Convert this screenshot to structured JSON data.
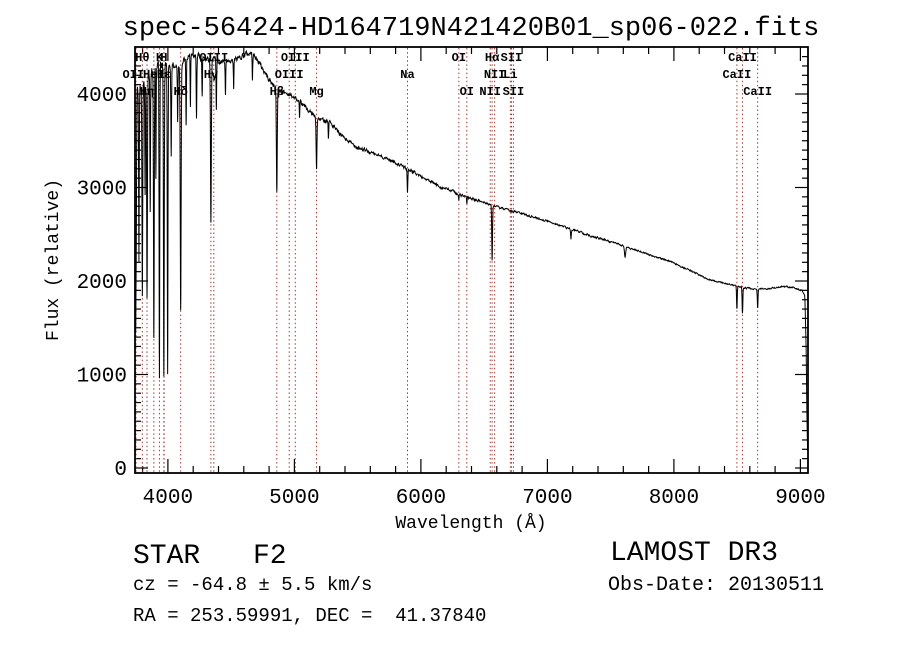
{
  "title": "spec-56424-HD164719N421420B01_sp06-022.fits",
  "axes": {
    "xlabel": "Wavelength (Å)",
    "ylabel": "Flux (relative)",
    "x_tick_labels": [
      "4000",
      "5000",
      "6000",
      "7000",
      "8000",
      "9000"
    ],
    "y_tick_labels": [
      "0",
      "1000",
      "2000",
      "3000",
      "4000"
    ]
  },
  "footer": {
    "class_label": "STAR",
    "subclass_label": "F2",
    "cz_line": "cz = -64.8 ± 5.5 km/s",
    "radec_line": "RA = 253.59991, DEC =  41.37840",
    "release": "LAMOST DR3",
    "obs_date": "Obs-Date: 20130511"
  },
  "colors": {
    "background": "#ffffff",
    "spectrum": "#000000",
    "frame": "#000000",
    "line_marker": "#a33a33"
  },
  "chart_data": {
    "type": "line",
    "title": "spec-56424-HD164719N421420B01_sp06-022.fits",
    "xlabel": "Wavelength (Å)",
    "ylabel": "Flux (relative)",
    "xlim": [
      3740,
      9060
    ],
    "ylim": [
      0,
      4500
    ],
    "x_ticks": [
      4000,
      5000,
      6000,
      7000,
      8000,
      9000
    ],
    "y_ticks": [
      0,
      1000,
      2000,
      3000,
      4000
    ],
    "x_minor_step": 200,
    "y_minor_step": 100,
    "grid": false,
    "noise_seed": 42,
    "continuum_points": [
      [
        3741,
        3300
      ],
      [
        3748,
        4000
      ],
      [
        3780,
        4100
      ],
      [
        3850,
        4200
      ],
      [
        3920,
        4300
      ],
      [
        4000,
        4300
      ],
      [
        4080,
        4300
      ],
      [
        4150,
        4380
      ],
      [
        4250,
        4400
      ],
      [
        4350,
        4380
      ],
      [
        4420,
        4330
      ],
      [
        4500,
        4340
      ],
      [
        4600,
        4420
      ],
      [
        4660,
        4440
      ],
      [
        4720,
        4340
      ],
      [
        4800,
        4150
      ],
      [
        4870,
        4050
      ],
      [
        4950,
        4000
      ],
      [
        5000,
        3960
      ],
      [
        5080,
        3870
      ],
      [
        5180,
        3730
      ],
      [
        5270,
        3720
      ],
      [
        5350,
        3580
      ],
      [
        5450,
        3470
      ],
      [
        5550,
        3400
      ],
      [
        5650,
        3350
      ],
      [
        5750,
        3300
      ],
      [
        5850,
        3230
      ],
      [
        5950,
        3160
      ],
      [
        6050,
        3080
      ],
      [
        6150,
        3010
      ],
      [
        6250,
        2960
      ],
      [
        6350,
        2900
      ],
      [
        6450,
        2860
      ],
      [
        6550,
        2820
      ],
      [
        6650,
        2770
      ],
      [
        6750,
        2740
      ],
      [
        6850,
        2700
      ],
      [
        6950,
        2660
      ],
      [
        7050,
        2620
      ],
      [
        7150,
        2570
      ],
      [
        7250,
        2530
      ],
      [
        7350,
        2480
      ],
      [
        7450,
        2440
      ],
      [
        7550,
        2400
      ],
      [
        7650,
        2350
      ],
      [
        7750,
        2310
      ],
      [
        7850,
        2260
      ],
      [
        7950,
        2220
      ],
      [
        8050,
        2160
      ],
      [
        8150,
        2100
      ],
      [
        8250,
        2030
      ],
      [
        8350,
        1990
      ],
      [
        8450,
        1960
      ],
      [
        8550,
        1930
      ],
      [
        8650,
        1910
      ],
      [
        8750,
        1920
      ],
      [
        8850,
        1940
      ],
      [
        8950,
        1930
      ],
      [
        9010,
        1900
      ],
      [
        9035,
        1850
      ],
      [
        9045,
        1300
      ],
      [
        9052,
        500
      ],
      [
        9058,
        120
      ]
    ],
    "absorption_lines": [
      [
        3745,
        1500,
        2.2
      ],
      [
        3750,
        2450,
        2.2
      ],
      [
        3771,
        2250,
        2.4
      ],
      [
        3798,
        1900,
        3.0
      ],
      [
        3820,
        2950,
        2.2
      ],
      [
        3835,
        1850,
        3.0
      ],
      [
        3860,
        2750,
        2.2
      ],
      [
        3889,
        1400,
        3.0
      ],
      [
        3905,
        3100,
        2.0
      ],
      [
        3933,
        1010,
        2.6
      ],
      [
        3968,
        1000,
        3.0
      ],
      [
        3998,
        1060,
        2.6
      ],
      [
        4026,
        3350,
        2.4
      ],
      [
        4077,
        3700,
        2.2
      ],
      [
        4101,
        1700,
        3.4
      ],
      [
        4144,
        3650,
        2.2
      ],
      [
        4178,
        3900,
        2.0
      ],
      [
        4226,
        3750,
        2.2
      ],
      [
        4271,
        3950,
        2.0
      ],
      [
        4340,
        2650,
        3.4
      ],
      [
        4383,
        3880,
        2.2
      ],
      [
        4455,
        3980,
        2.2
      ],
      [
        4520,
        4060,
        2.0
      ],
      [
        4668,
        4180,
        2.2
      ],
      [
        4861,
        2950,
        3.4
      ],
      [
        5041,
        3720,
        2.0
      ],
      [
        5175,
        3200,
        3.2
      ],
      [
        5269,
        3520,
        2.2
      ],
      [
        5894,
        2950,
        2.6
      ],
      [
        6300,
        2860,
        2.0
      ],
      [
        6363,
        2820,
        2.0
      ],
      [
        6563,
        2230,
        3.0
      ],
      [
        7186,
        2450,
        3.0
      ],
      [
        7614,
        2260,
        4.5
      ],
      [
        8498,
        1700,
        2.6
      ],
      [
        8542,
        1650,
        2.8
      ],
      [
        8662,
        1720,
        2.6
      ]
    ],
    "spectral_line_markers": [
      {
        "label": "OII",
        "wavelength": 3727,
        "row": 2
      },
      {
        "label": "Hθ",
        "wavelength": 3798,
        "row": 1
      },
      {
        "label": "Hη",
        "wavelength": 3835,
        "row": 3
      },
      {
        "label": "HeI",
        "wavelength": 3889,
        "row": 2
      },
      {
        "label": "K",
        "wavelength": 3933,
        "row": 1
      },
      {
        "label": "H",
        "wavelength": 3968,
        "row": 1
      },
      {
        "label": "Hε",
        "wavelength": 3970,
        "row": 2
      },
      {
        "label": "Hδ",
        "wavelength": 4101,
        "row": 3
      },
      {
        "label": "Hγ",
        "wavelength": 4340,
        "row": 2
      },
      {
        "label": "OIII",
        "wavelength": 4363,
        "row": 1
      },
      {
        "label": "Hβ",
        "wavelength": 4861,
        "row": 3
      },
      {
        "label": "OIII",
        "wavelength": 4959,
        "row": 2
      },
      {
        "label": "OIII",
        "wavelength": 5007,
        "row": 1
      },
      {
        "label": "Mg",
        "wavelength": 5175,
        "row": 3
      },
      {
        "label": "Na",
        "wavelength": 5894,
        "row": 2
      },
      {
        "label": "OI",
        "wavelength": 6300,
        "row": 1
      },
      {
        "label": "OI",
        "wavelength": 6363,
        "row": 3
      },
      {
        "label": "NII",
        "wavelength": 6548,
        "row": 3
      },
      {
        "label": "Hα",
        "wavelength": 6563,
        "row": 1
      },
      {
        "label": "NII",
        "wavelength": 6583,
        "row": 2
      },
      {
        "label": "Li",
        "wavelength": 6707,
        "row": 2
      },
      {
        "label": "SII",
        "wavelength": 6716,
        "row": 1
      },
      {
        "label": "SII",
        "wavelength": 6731,
        "row": 3
      },
      {
        "label": "CaII",
        "wavelength": 8498,
        "row": 2
      },
      {
        "label": "CaII",
        "wavelength": 8542,
        "row": 1
      },
      {
        "label": "CaII",
        "wavelength": 8662,
        "row": 3
      }
    ]
  }
}
